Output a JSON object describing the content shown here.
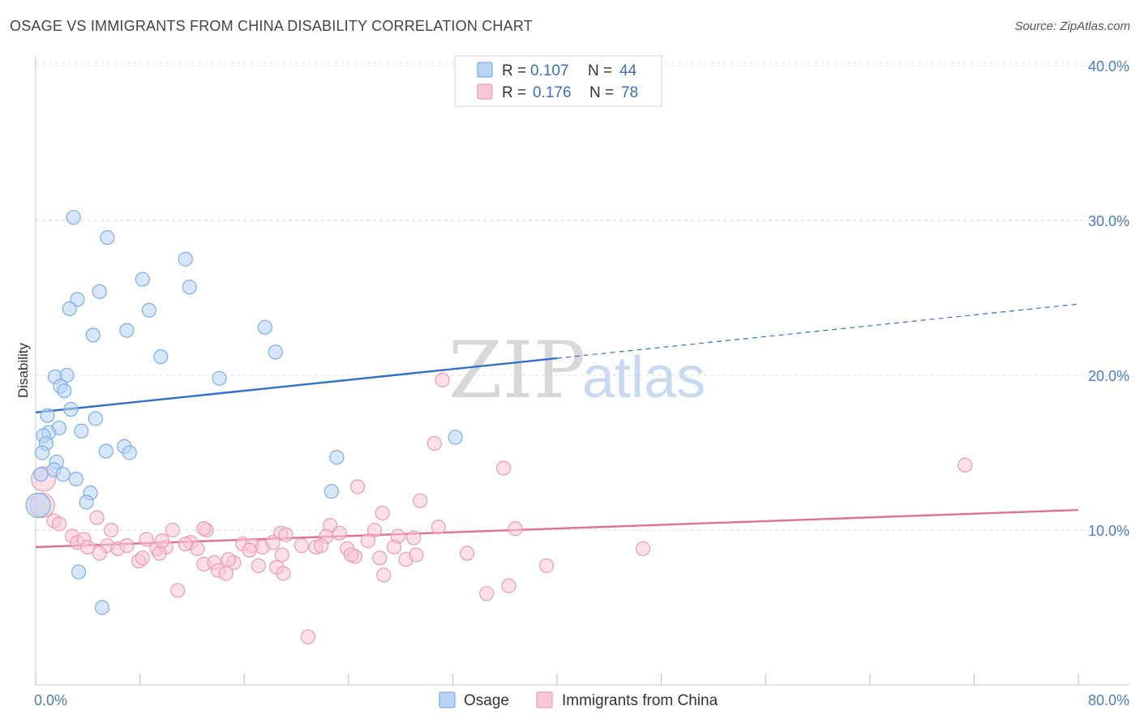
{
  "title": "OSAGE VS IMMIGRANTS FROM CHINA DISABILITY CORRELATION CHART",
  "source": "Source: ZipAtlas.com",
  "chart_data": {
    "type": "scatter",
    "xlabel": "",
    "ylabel": "Disability",
    "xlim": [
      0,
      80
    ],
    "ylim": [
      0,
      42
    ],
    "x_tick_labels": [
      "0.0%",
      "80.0%"
    ],
    "y_ticks": [
      10,
      20,
      30,
      40
    ],
    "y_tick_labels": [
      "10.0%",
      "20.0%",
      "30.0%",
      "40.0%"
    ],
    "grid": "horizontal dashed",
    "legend_placement": "top-center",
    "watermark": {
      "part1": "ZIP",
      "part2": "atlas"
    },
    "stats": [
      {
        "r_label": "R =",
        "r_value": "0.107",
        "n_label": "N =",
        "n_value": "44"
      },
      {
        "r_label": "R =",
        "r_value": "0.176",
        "n_label": "N =",
        "n_value": "78"
      }
    ],
    "series": [
      {
        "name": "Osage",
        "color": "#7aaee8",
        "fill": "#b8d3f3",
        "line_color": "#3070c8",
        "trend": {
          "x0": 0,
          "y0": 17.6,
          "x1": 40,
          "y1": 21.1,
          "x_ext": 80,
          "y_ext": 24.6
        },
        "points": [
          [
            2.9,
            30.2
          ],
          [
            5.5,
            28.9
          ],
          [
            11.5,
            27.5
          ],
          [
            8.2,
            26.2
          ],
          [
            11.8,
            25.7
          ],
          [
            4.9,
            25.4
          ],
          [
            3.2,
            24.9
          ],
          [
            2.6,
            24.3
          ],
          [
            8.7,
            24.2
          ],
          [
            7.0,
            22.9
          ],
          [
            4.4,
            22.6
          ],
          [
            17.6,
            23.1
          ],
          [
            18.4,
            21.5
          ],
          [
            9.6,
            21.2
          ],
          [
            14.1,
            19.8
          ],
          [
            1.5,
            19.9
          ],
          [
            2.4,
            20.0
          ],
          [
            1.9,
            19.3
          ],
          [
            2.2,
            19.0
          ],
          [
            2.7,
            17.8
          ],
          [
            0.9,
            17.4
          ],
          [
            4.6,
            17.2
          ],
          [
            1.8,
            16.6
          ],
          [
            3.5,
            16.4
          ],
          [
            1.0,
            16.3
          ],
          [
            0.6,
            16.1
          ],
          [
            32.2,
            16.0
          ],
          [
            0.8,
            15.6
          ],
          [
            6.8,
            15.4
          ],
          [
            5.4,
            15.1
          ],
          [
            7.2,
            15.0
          ],
          [
            0.5,
            15.0
          ],
          [
            23.1,
            14.7
          ],
          [
            1.6,
            14.4
          ],
          [
            1.4,
            13.9
          ],
          [
            0.4,
            13.6
          ],
          [
            2.1,
            13.6
          ],
          [
            3.1,
            13.3
          ],
          [
            4.2,
            12.4
          ],
          [
            22.7,
            12.5
          ],
          [
            0.2,
            11.6
          ],
          [
            3.9,
            11.8
          ],
          [
            3.3,
            7.3
          ],
          [
            5.1,
            5.0
          ]
        ]
      },
      {
        "name": "Immigrants from China",
        "color": "#ee9ab4",
        "fill": "#f8c6d5",
        "line_color": "#e0709a",
        "trend": {
          "x0": 0,
          "y0": 8.9,
          "x1": 80,
          "y1": 11.3
        },
        "points": [
          [
            31.2,
            19.7
          ],
          [
            30.6,
            15.6
          ],
          [
            71.3,
            14.2
          ],
          [
            35.9,
            14.0
          ],
          [
            24.7,
            12.8
          ],
          [
            29.5,
            11.9
          ],
          [
            26.6,
            11.1
          ],
          [
            0.6,
            13.3
          ],
          [
            0.5,
            11.6
          ],
          [
            1.4,
            10.6
          ],
          [
            1.8,
            10.4
          ],
          [
            4.7,
            10.8
          ],
          [
            22.6,
            10.3
          ],
          [
            30.9,
            10.2
          ],
          [
            36.8,
            10.1
          ],
          [
            26.0,
            10.0
          ],
          [
            10.5,
            10.0
          ],
          [
            13.1,
            10.0
          ],
          [
            12.9,
            10.1
          ],
          [
            18.8,
            9.8
          ],
          [
            19.2,
            9.7
          ],
          [
            22.3,
            9.6
          ],
          [
            27.8,
            9.6
          ],
          [
            29.0,
            9.5
          ],
          [
            2.8,
            9.6
          ],
          [
            3.2,
            9.2
          ],
          [
            3.7,
            9.4
          ],
          [
            5.5,
            9.0
          ],
          [
            6.3,
            8.8
          ],
          [
            7.0,
            9.0
          ],
          [
            8.5,
            9.4
          ],
          [
            9.3,
            8.8
          ],
          [
            10.0,
            8.9
          ],
          [
            11.9,
            9.2
          ],
          [
            12.4,
            8.8
          ],
          [
            15.9,
            9.1
          ],
          [
            16.6,
            9.0
          ],
          [
            17.4,
            8.9
          ],
          [
            18.2,
            9.2
          ],
          [
            21.5,
            8.9
          ],
          [
            21.9,
            9.0
          ],
          [
            23.9,
            8.8
          ],
          [
            4.0,
            8.9
          ],
          [
            4.9,
            8.5
          ],
          [
            7.9,
            8.0
          ],
          [
            8.2,
            8.2
          ],
          [
            9.5,
            8.5
          ],
          [
            12.9,
            7.8
          ],
          [
            13.7,
            7.9
          ],
          [
            15.2,
            7.9
          ],
          [
            17.1,
            7.7
          ],
          [
            18.5,
            7.6
          ],
          [
            24.5,
            8.3
          ],
          [
            26.4,
            8.2
          ],
          [
            28.4,
            8.1
          ],
          [
            29.2,
            8.4
          ],
          [
            33.1,
            8.5
          ],
          [
            39.2,
            7.7
          ],
          [
            46.6,
            8.8
          ],
          [
            10.9,
            6.1
          ],
          [
            14.0,
            7.4
          ],
          [
            19.0,
            7.2
          ],
          [
            26.7,
            7.1
          ],
          [
            34.6,
            5.9
          ],
          [
            36.3,
            6.4
          ],
          [
            20.9,
            3.1
          ],
          [
            14.6,
            7.2
          ],
          [
            24.2,
            8.4
          ],
          [
            5.8,
            10.0
          ],
          [
            9.7,
            9.3
          ],
          [
            11.5,
            9.1
          ],
          [
            14.8,
            8.1
          ],
          [
            16.4,
            8.7
          ],
          [
            18.9,
            8.4
          ],
          [
            20.4,
            9.0
          ],
          [
            23.3,
            9.8
          ],
          [
            25.5,
            9.3
          ],
          [
            27.5,
            8.9
          ]
        ]
      }
    ]
  }
}
